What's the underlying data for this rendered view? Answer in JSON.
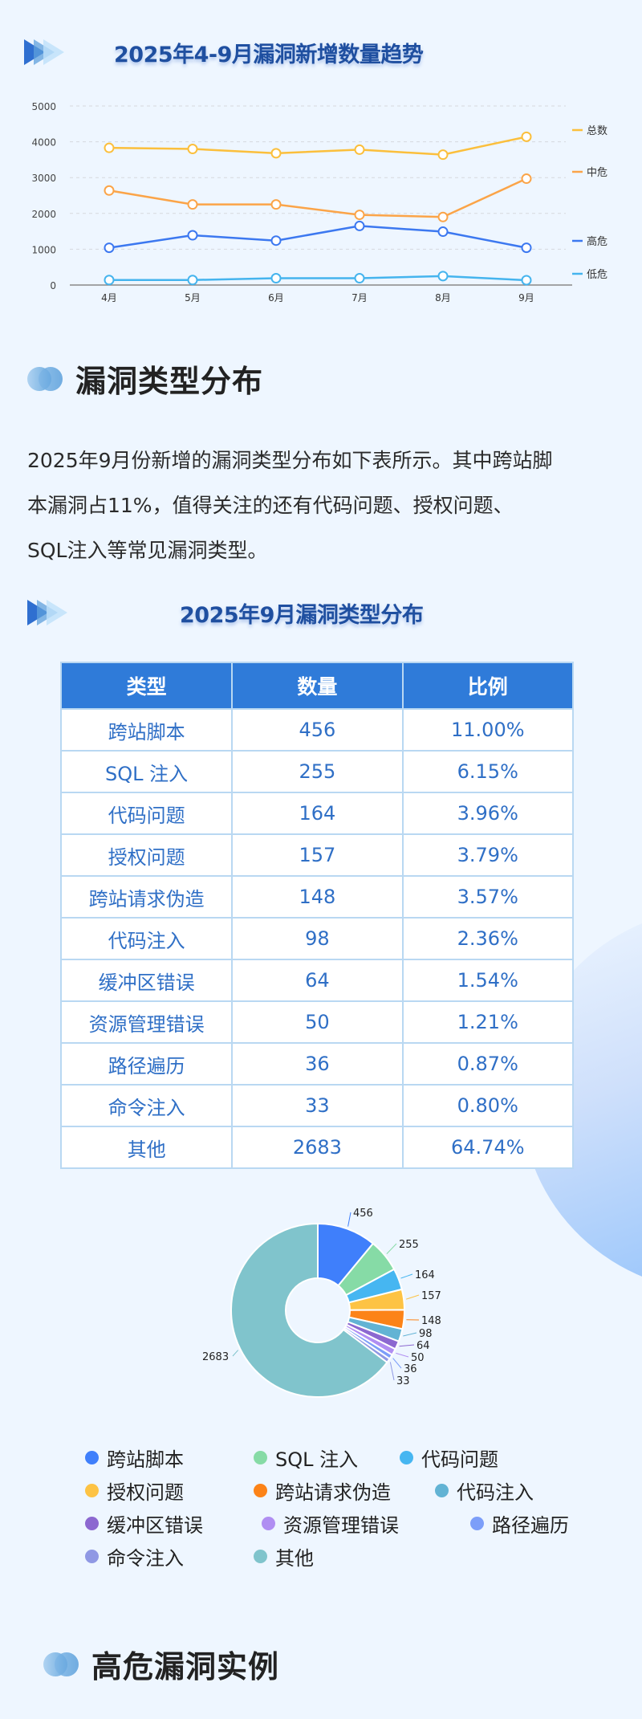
{
  "trend_section": {
    "title": "2025年4-9月漏洞新增数量趋势"
  },
  "chart_data": [
    {
      "type": "line",
      "title": "2025年4-9月漏洞新增数量趋势",
      "categories": [
        "4月",
        "5月",
        "6月",
        "7月",
        "8月",
        "9月"
      ],
      "series": [
        {
          "name": "总数",
          "color": "#fbbf3c",
          "values": [
            3830,
            3800,
            3680,
            3780,
            3640,
            4140
          ]
        },
        {
          "name": "中危",
          "color": "#fba448",
          "values": [
            2640,
            2250,
            2250,
            1960,
            1900,
            2970
          ]
        },
        {
          "name": "高危",
          "color": "#3c78f0",
          "values": [
            1040,
            1390,
            1240,
            1650,
            1490,
            1040
          ]
        },
        {
          "name": "低危",
          "color": "#45b4ee",
          "values": [
            140,
            140,
            190,
            190,
            250,
            135
          ]
        }
      ],
      "yticks": [
        "0",
        "1000",
        "2000",
        "3000",
        "4000",
        "5000"
      ],
      "ylim": [
        0,
        5000
      ],
      "grid": true,
      "legend_position": "right",
      "xlabel": "",
      "ylabel": ""
    },
    {
      "type": "pie",
      "title": "2025年9月漏洞类型分布",
      "donut": true,
      "categories": [
        "跨站脚本",
        "SQL 注入",
        "代码问题",
        "授权问题",
        "跨站请求伪造",
        "代码注入",
        "缓冲区错误",
        "资源管理错误",
        "路径遍历",
        "命令注入",
        "其他"
      ],
      "values": [
        456,
        255,
        164,
        157,
        148,
        98,
        64,
        50,
        36,
        33,
        2683
      ],
      "colors": [
        "#3f7ffb",
        "#86dba6",
        "#46b6f1",
        "#fdc344",
        "#fc8318",
        "#62b3d4",
        "#8c68d0",
        "#b08ef2",
        "#7c9ef9",
        "#8f98e4",
        "#80c4cc"
      ],
      "labels": [
        "456",
        "255",
        "164",
        "157",
        "148",
        "98",
        "64",
        "50",
        "36",
        "33",
        "2683"
      ],
      "legend_position": "bottom"
    }
  ],
  "type_section": {
    "heading": "漏洞类型分布",
    "paragraph": "2025年9月份新增的漏洞类型分布如下表所示。其中跨站脚本漏洞占11%，值得关注的还有代码问题、授权问题、SQL注入等常见漏洞类型。",
    "paragraph_lines": [
      "2025年9月份新增的漏洞类型分布如下表所示。其中跨站脚",
      "本漏洞占11%，值得关注的还有代码问题、授权问题、",
      "SQL注入等常见漏洞类型。"
    ],
    "table_title": "2025年9月漏洞类型分布",
    "table": {
      "headers": [
        "类型",
        "数量",
        "比例"
      ],
      "rows": [
        [
          "跨站脚本",
          "456",
          "11.00%"
        ],
        [
          "SQL 注入",
          "255",
          "6.15%"
        ],
        [
          "代码问题",
          "164",
          "3.96%"
        ],
        [
          "授权问题",
          "157",
          "3.79%"
        ],
        [
          "跨站请求伪造",
          "148",
          "3.57%"
        ],
        [
          "代码注入",
          "98",
          "2.36%"
        ],
        [
          "缓冲区错误",
          "64",
          "1.54%"
        ],
        [
          "资源管理错误",
          "50",
          "1.21%"
        ],
        [
          "路径遍历",
          "36",
          "0.87%"
        ],
        [
          "命令注入",
          "33",
          "0.80%"
        ],
        [
          "其他",
          "2683",
          "64.74%"
        ]
      ]
    },
    "legend_rows": [
      [
        {
          "label": "跨站脚本",
          "color": "#3f7ffb"
        },
        {
          "label": "SQL 注入",
          "color": "#86dba6"
        },
        {
          "label": "代码问题",
          "color": "#46b6f1"
        }
      ],
      [
        {
          "label": "授权问题",
          "color": "#fdc344"
        },
        {
          "label": "跨站请求伪造",
          "color": "#fc8318"
        },
        {
          "label": "代码注入",
          "color": "#62b3d4"
        }
      ],
      [
        {
          "label": "缓冲区错误",
          "color": "#8c68d0"
        },
        {
          "label": "资源管理错误",
          "color": "#b08ef2"
        },
        {
          "label": "路径遍历",
          "color": "#7c9ef9"
        }
      ],
      [
        {
          "label": "命令注入",
          "color": "#8f98e4"
        },
        {
          "label": "其他",
          "color": "#80c4cc"
        }
      ]
    ]
  },
  "examples_section": {
    "heading": "高危漏洞实例"
  },
  "colors": {
    "page_bg": "#eef6ff",
    "title_blue": "#1f4fa0",
    "table_header": "#2f7bd9",
    "table_text": "#2f6fc6",
    "table_border": "#b9d8f2"
  }
}
